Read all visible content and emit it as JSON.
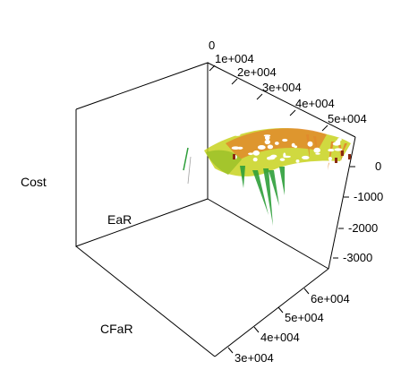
{
  "chart_data": {
    "type": "surface3d",
    "axes": {
      "cost_label": "Cost",
      "ear_label": "EaR",
      "cfar_label": "CFaR",
      "ear_ticks": [
        "0",
        "1e+004",
        "2e+004",
        "3e+004",
        "4e+004",
        "5e+004"
      ],
      "cost_ticks": [
        "0",
        "-1000",
        "-2000",
        "-3000"
      ],
      "cfar_ticks": [
        "6e+004",
        "5e+004",
        "4e+004",
        "3e+004"
      ]
    },
    "colors": {
      "low": "#2e9e3a",
      "mid": "#c8d21e",
      "high": "#e08a2c",
      "peak": "#ffffff"
    },
    "grid": false
  }
}
